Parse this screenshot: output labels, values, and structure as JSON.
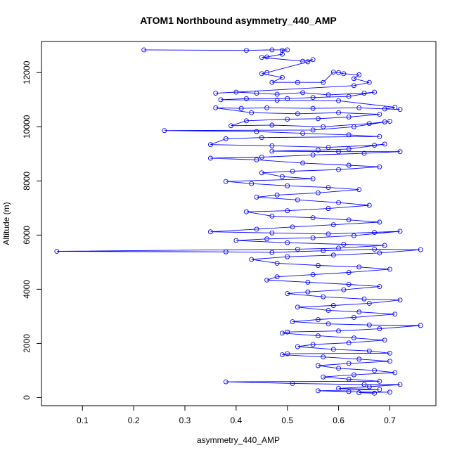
{
  "chart_data": {
    "type": "line",
    "title": "ATOM1 Northbound asymmetry_440_AMP",
    "xlabel": "asymmetry_440_AMP",
    "ylabel": "Altitude (m)",
    "xlim": [
      0.02,
      0.79
    ],
    "ylim": [
      -300,
      13150
    ],
    "xticks": [
      "0.1",
      "0.2",
      "0.3",
      "0.4",
      "0.5",
      "0.6",
      "0.7"
    ],
    "yticks": [
      "0",
      "2000",
      "4000",
      "6000",
      "8000",
      "10000",
      "12000"
    ],
    "grid": false,
    "series": [
      {
        "color": "#0000ff",
        "marker": "open-circle",
        "points": [
          [
            0.22,
            12840
          ],
          [
            0.42,
            12820
          ],
          [
            0.47,
            12840
          ],
          [
            0.5,
            12840
          ],
          [
            0.49,
            12820
          ],
          [
            0.49,
            12680
          ],
          [
            0.46,
            12580
          ],
          [
            0.45,
            12560
          ],
          [
            0.53,
            12420
          ],
          [
            0.55,
            12480
          ],
          [
            0.54,
            12400
          ],
          [
            0.46,
            12000
          ],
          [
            0.45,
            11960
          ],
          [
            0.49,
            11820
          ],
          [
            0.47,
            11640
          ],
          [
            0.52,
            11640
          ],
          [
            0.57,
            11640
          ],
          [
            0.59,
            12020
          ],
          [
            0.6,
            12000
          ],
          [
            0.61,
            11960
          ],
          [
            0.64,
            11920
          ],
          [
            0.63,
            11780
          ],
          [
            0.66,
            11640
          ],
          [
            0.63,
            11520
          ],
          [
            0.36,
            11240
          ],
          [
            0.4,
            11280
          ],
          [
            0.44,
            11240
          ],
          [
            0.48,
            11200
          ],
          [
            0.53,
            11260
          ],
          [
            0.58,
            11180
          ],
          [
            0.65,
            11240
          ],
          [
            0.67,
            11280
          ],
          [
            0.62,
            11120
          ],
          [
            0.55,
            11080
          ],
          [
            0.5,
            11040
          ],
          [
            0.42,
            11040
          ],
          [
            0.37,
            11000
          ],
          [
            0.48,
            10980
          ],
          [
            0.6,
            10960
          ],
          [
            0.71,
            10720
          ],
          [
            0.69,
            10660
          ],
          [
            0.72,
            10640
          ],
          [
            0.64,
            10700
          ],
          [
            0.55,
            10680
          ],
          [
            0.46,
            10700
          ],
          [
            0.41,
            10680
          ],
          [
            0.36,
            10700
          ],
          [
            0.43,
            10520
          ],
          [
            0.52,
            10480
          ],
          [
            0.6,
            10520
          ],
          [
            0.68,
            10460
          ],
          [
            0.62,
            10360
          ],
          [
            0.56,
            10300
          ],
          [
            0.5,
            10280
          ],
          [
            0.42,
            10220
          ],
          [
            0.39,
            10040
          ],
          [
            0.47,
            10060
          ],
          [
            0.57,
            10000
          ],
          [
            0.66,
            10120
          ],
          [
            0.69,
            10180
          ],
          [
            0.7,
            10200
          ],
          [
            0.63,
            10000
          ],
          [
            0.55,
            9880
          ],
          [
            0.26,
            9860
          ],
          [
            0.44,
            9820
          ],
          [
            0.53,
            9760
          ],
          [
            0.62,
            9700
          ],
          [
            0.68,
            9640
          ],
          [
            0.45,
            9600
          ],
          [
            0.38,
            9560
          ],
          [
            0.35,
            9340
          ],
          [
            0.47,
            9300
          ],
          [
            0.58,
            9240
          ],
          [
            0.67,
            9320
          ],
          [
            0.69,
            9360
          ],
          [
            0.62,
            9180
          ],
          [
            0.56,
            9140
          ],
          [
            0.47,
            9100
          ],
          [
            0.6,
            9080
          ],
          [
            0.72,
            9080
          ],
          [
            0.65,
            9020
          ],
          [
            0.55,
            8960
          ],
          [
            0.45,
            8880
          ],
          [
            0.35,
            8840
          ],
          [
            0.44,
            8780
          ],
          [
            0.53,
            8660
          ],
          [
            0.62,
            8580
          ],
          [
            0.68,
            8520
          ],
          [
            0.6,
            8420
          ],
          [
            0.51,
            8360
          ],
          [
            0.45,
            8300
          ],
          [
            0.49,
            8160
          ],
          [
            0.55,
            8080
          ],
          [
            0.38,
            7980
          ],
          [
            0.43,
            7900
          ],
          [
            0.5,
            7820
          ],
          [
            0.58,
            7760
          ],
          [
            0.64,
            7680
          ],
          [
            0.56,
            7560
          ],
          [
            0.48,
            7480
          ],
          [
            0.44,
            7400
          ],
          [
            0.52,
            7300
          ],
          [
            0.6,
            7200
          ],
          [
            0.66,
            7100
          ],
          [
            0.58,
            6980
          ],
          [
            0.5,
            6900
          ],
          [
            0.42,
            6860
          ],
          [
            0.47,
            6700
          ],
          [
            0.55,
            6640
          ],
          [
            0.62,
            6560
          ],
          [
            0.68,
            6480
          ],
          [
            0.59,
            6380
          ],
          [
            0.51,
            6300
          ],
          [
            0.44,
            6220
          ],
          [
            0.35,
            6120
          ],
          [
            0.47,
            6080
          ],
          [
            0.58,
            6040
          ],
          [
            0.67,
            6100
          ],
          [
            0.72,
            6140
          ],
          [
            0.63,
            5980
          ],
          [
            0.55,
            5900
          ],
          [
            0.46,
            5860
          ],
          [
            0.4,
            5800
          ],
          [
            0.5,
            5720
          ],
          [
            0.61,
            5660
          ],
          [
            0.69,
            5620
          ],
          [
            0.6,
            5520
          ],
          [
            0.52,
            5480
          ],
          [
            0.05,
            5400
          ],
          [
            0.38,
            5380
          ],
          [
            0.47,
            5360
          ],
          [
            0.57,
            5420
          ],
          [
            0.67,
            5480
          ],
          [
            0.76,
            5460
          ],
          [
            0.68,
            5340
          ],
          [
            0.59,
            5260
          ],
          [
            0.5,
            5200
          ],
          [
            0.43,
            5100
          ],
          [
            0.48,
            4960
          ],
          [
            0.56,
            4880
          ],
          [
            0.64,
            4820
          ],
          [
            0.7,
            4740
          ],
          [
            0.62,
            4620
          ],
          [
            0.55,
            4540
          ],
          [
            0.48,
            4460
          ],
          [
            0.46,
            4340
          ],
          [
            0.54,
            4260
          ],
          [
            0.62,
            4180
          ],
          [
            0.68,
            4100
          ],
          [
            0.61,
            3980
          ],
          [
            0.54,
            3900
          ],
          [
            0.5,
            3840
          ],
          [
            0.57,
            3720
          ],
          [
            0.65,
            3640
          ],
          [
            0.72,
            3600
          ],
          [
            0.66,
            3480
          ],
          [
            0.59,
            3400
          ],
          [
            0.52,
            3340
          ],
          [
            0.58,
            3220
          ],
          [
            0.64,
            3160
          ],
          [
            0.71,
            3080
          ],
          [
            0.63,
            2960
          ],
          [
            0.56,
            2880
          ],
          [
            0.51,
            2800
          ],
          [
            0.58,
            2720
          ],
          [
            0.66,
            2680
          ],
          [
            0.76,
            2660
          ],
          [
            0.68,
            2540
          ],
          [
            0.6,
            2460
          ],
          [
            0.5,
            2420
          ],
          [
            0.49,
            2380
          ],
          [
            0.56,
            2280
          ],
          [
            0.63,
            2200
          ],
          [
            0.69,
            2120
          ],
          [
            0.62,
            2020
          ],
          [
            0.55,
            1960
          ],
          [
            0.52,
            1880
          ],
          [
            0.59,
            1780
          ],
          [
            0.66,
            1720
          ],
          [
            0.7,
            1640
          ],
          [
            0.5,
            1620
          ],
          [
            0.49,
            1580
          ],
          [
            0.57,
            1500
          ],
          [
            0.64,
            1420
          ],
          [
            0.7,
            1340
          ],
          [
            0.62,
            1260
          ],
          [
            0.56,
            1180
          ],
          [
            0.6,
            1080
          ],
          [
            0.67,
            1000
          ],
          [
            0.71,
            920
          ],
          [
            0.63,
            840
          ],
          [
            0.57,
            760
          ],
          [
            0.62,
            680
          ],
          [
            0.68,
            600
          ],
          [
            0.38,
            580
          ],
          [
            0.51,
            520
          ],
          [
            0.65,
            480
          ],
          [
            0.72,
            480
          ],
          [
            0.66,
            400
          ],
          [
            0.6,
            340
          ],
          [
            0.68,
            300
          ],
          [
            0.56,
            250
          ],
          [
            0.62,
            220
          ],
          [
            0.7,
            200
          ],
          [
            0.64,
            180
          ],
          [
            0.67,
            160
          ]
        ]
      }
    ]
  }
}
